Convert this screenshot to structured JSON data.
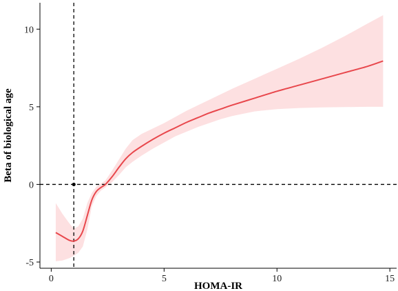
{
  "chart_data": {
    "type": "line",
    "title": "",
    "xlabel": "HOMA-IR",
    "ylabel": "Beta of biological age",
    "xlim": [
      -0.5,
      15.3
    ],
    "ylim": [
      -5.4,
      11.7
    ],
    "xticks": [
      0,
      5,
      10,
      15
    ],
    "yticks": [
      -5,
      0,
      5,
      10
    ],
    "x_tick_labels": [
      "0",
      "5",
      "10",
      "15"
    ],
    "y_tick_labels": [
      "-5",
      "0",
      "5",
      "10"
    ],
    "grid": false,
    "legend": "none",
    "colors": {
      "line": "#e8474c",
      "ribbon": "#fde0e1",
      "reference": "#000000",
      "axis": "#000000"
    },
    "reference_lines": {
      "vertical_x": 1.0,
      "horizontal_y": 0
    },
    "reference_point": {
      "x": 1.0,
      "y": 0
    },
    "series": [
      {
        "x": [
          0.2,
          0.5,
          0.8,
          1.0,
          1.2,
          1.4,
          1.6,
          1.8,
          2.0,
          2.2,
          2.4,
          2.7,
          3.0,
          3.3,
          3.6,
          4.0,
          4.5,
          5.0,
          5.5,
          6.0,
          6.5,
          7.0,
          7.5,
          8.0,
          9.0,
          10.0,
          11.0,
          12.0,
          13.0,
          14.0,
          14.7
        ],
        "y": [
          -3.1,
          -3.35,
          -3.6,
          -3.65,
          -3.5,
          -3.0,
          -2.0,
          -1.0,
          -0.45,
          -0.2,
          0.0,
          0.5,
          1.1,
          1.65,
          2.05,
          2.45,
          2.9,
          3.3,
          3.65,
          4.0,
          4.3,
          4.6,
          4.85,
          5.1,
          5.55,
          6.0,
          6.4,
          6.8,
          7.2,
          7.6,
          7.95
        ],
        "lower": [
          -4.95,
          -4.9,
          -4.75,
          -4.6,
          -4.4,
          -4.0,
          -2.9,
          -1.4,
          -0.75,
          -0.4,
          -0.2,
          0.15,
          0.6,
          1.1,
          1.45,
          1.85,
          2.3,
          2.7,
          3.1,
          3.4,
          3.7,
          3.95,
          4.2,
          4.4,
          4.7,
          4.85,
          4.92,
          4.96,
          4.98,
          5.0,
          5.0
        ],
        "upper": [
          -1.2,
          -1.9,
          -2.5,
          -2.85,
          -2.7,
          -2.2,
          -1.2,
          -0.55,
          -0.15,
          0.05,
          0.25,
          0.9,
          1.6,
          2.3,
          2.85,
          3.25,
          3.6,
          3.95,
          4.35,
          4.75,
          5.1,
          5.45,
          5.8,
          6.15,
          6.8,
          7.45,
          8.1,
          8.8,
          9.55,
          10.35,
          10.9
        ]
      }
    ]
  }
}
